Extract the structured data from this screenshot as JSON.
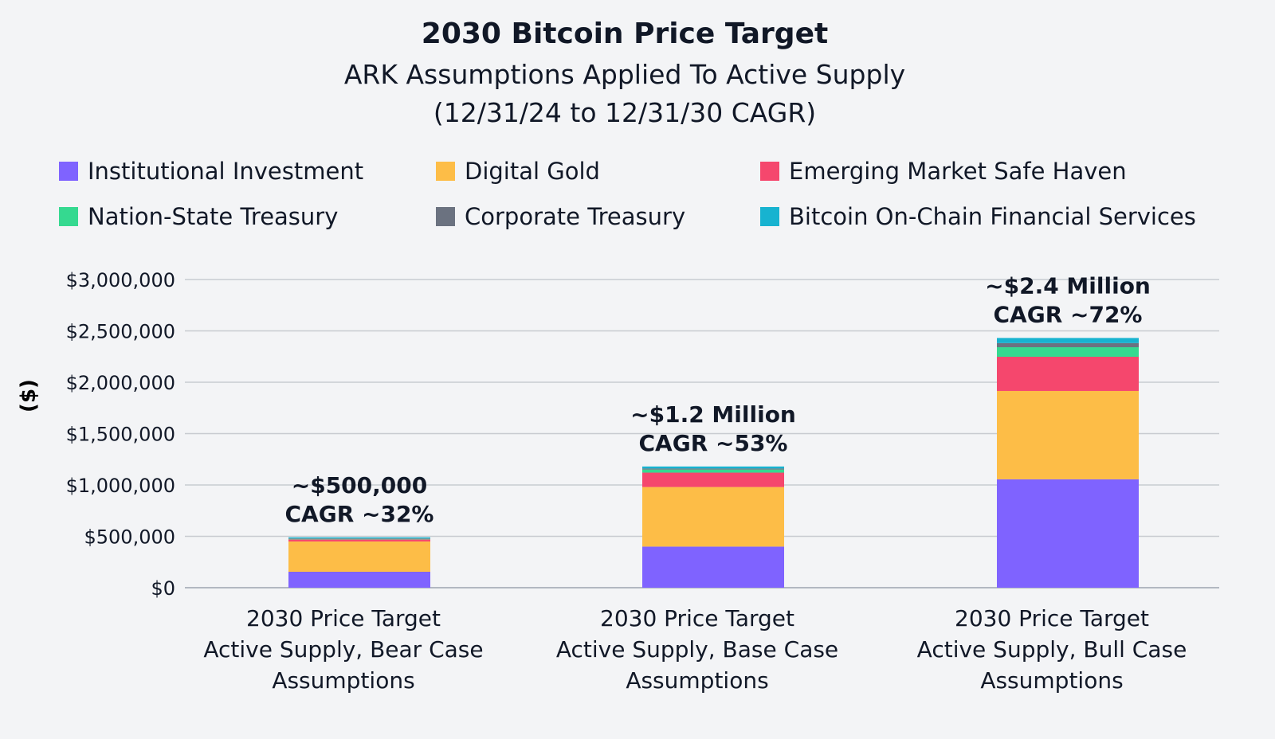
{
  "chart_data": {
    "type": "bar",
    "stacked": true,
    "title": "2030 Bitcoin Price Target",
    "subtitle": [
      "ARK Assumptions Applied To Active Supply",
      "(12/31/24 to 12/31/30 CAGR)"
    ],
    "xlabel": "",
    "ylabel": "($)",
    "ylim": [
      0,
      3000000
    ],
    "yticks": [
      0,
      500000,
      1000000,
      1500000,
      2000000,
      2500000,
      3000000
    ],
    "ytick_labels": [
      "$0",
      "$500,000",
      "$1,000,000",
      "$1,500,000",
      "$2,000,000",
      "$2,500,000",
      "$3,000,000"
    ],
    "grid": true,
    "legend_position": "top",
    "categories": [
      [
        "2030 Price Target",
        "Active Supply, Bear Case",
        "Assumptions"
      ],
      [
        "2030 Price Target",
        "Active Supply, Base Case",
        "Assumptions"
      ],
      [
        "2030 Price Target",
        "Active Supply, Bull Case",
        "Assumptions"
      ]
    ],
    "series": [
      {
        "name": "Institutional Investment",
        "color": "#7f63ff",
        "values": [
          155000,
          400000,
          1055000
        ]
      },
      {
        "name": "Digital Gold",
        "color": "#fdbd47",
        "values": [
          295000,
          580000,
          860000
        ]
      },
      {
        "name": "Emerging Market Safe Haven",
        "color": "#f5476d",
        "values": [
          20000,
          140000,
          333000
        ]
      },
      {
        "name": "Nation-State Treasury",
        "color": "#35d990",
        "values": [
          5000,
          30000,
          93000
        ]
      },
      {
        "name": "Corporate Treasury",
        "color": "#6b7280",
        "values": [
          5000,
          10000,
          40000
        ]
      },
      {
        "name": "Bitcoin On-Chain Financial Services",
        "color": "#17b3d0",
        "values": [
          10000,
          20000,
          50000
        ]
      }
    ],
    "annotations": [
      [
        "~$500,000",
        "CAGR ~32%"
      ],
      [
        "~$1.2 Million",
        "CAGR ~53%"
      ],
      [
        "~$2.4 Million",
        "CAGR ~72%"
      ]
    ]
  }
}
